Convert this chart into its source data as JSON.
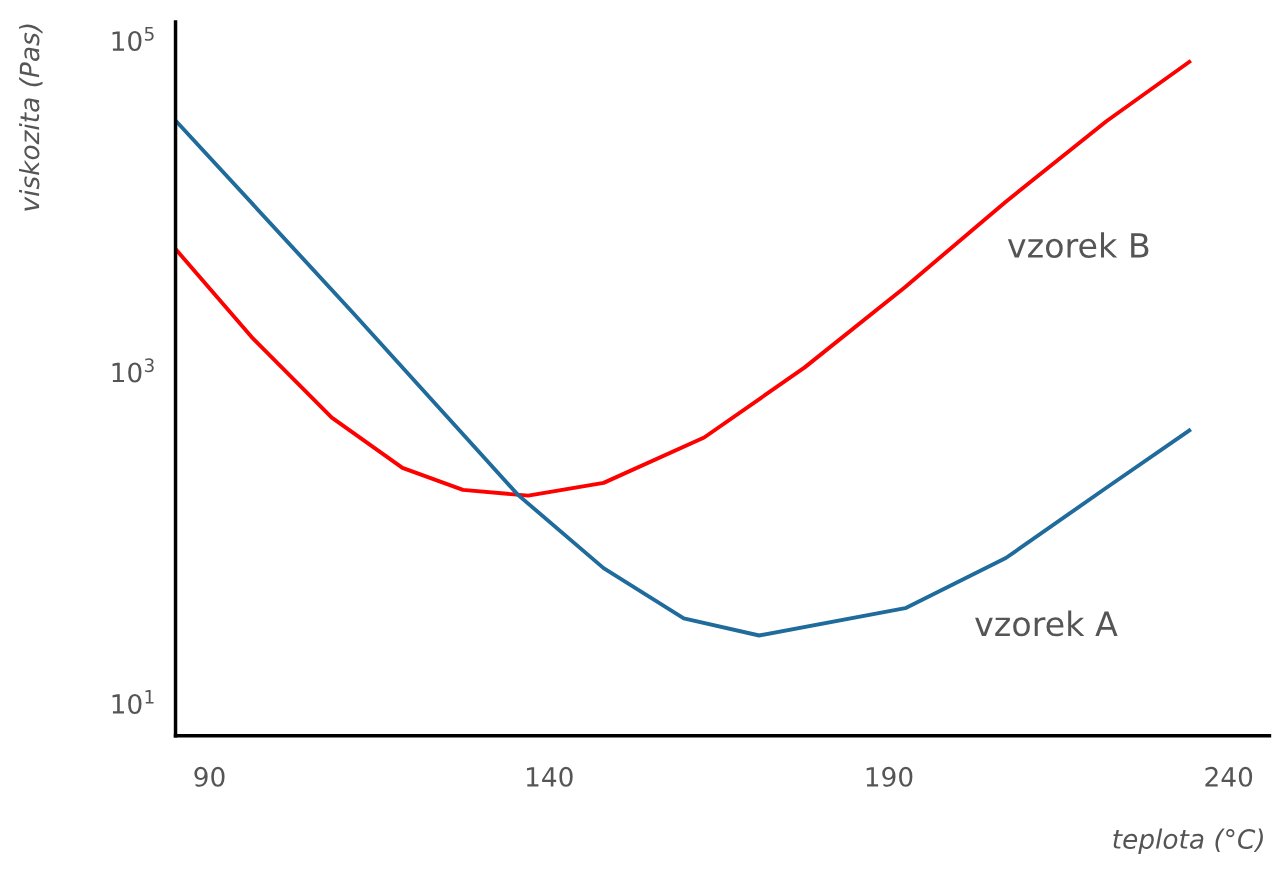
{
  "chart_data": {
    "type": "line",
    "xlabel": "teplota (°C)",
    "ylabel": "viskozita (Pas)",
    "log": "y",
    "xlim": [
      85,
      246
    ],
    "ylim": [
      6.4,
      130000
    ],
    "xticks": [
      90,
      140,
      190,
      240
    ],
    "yticks": [
      {
        "value": 10,
        "label": "10$^{1}$"
      },
      {
        "value": 1000,
        "label": "10$^{3}$"
      },
      {
        "value": 100000,
        "label": "10$^{5}$"
      }
    ],
    "grid": false,
    "legend": false,
    "marker": "none",
    "line_style": "solid",
    "series": [
      {
        "name": "vzorek B",
        "color": "#ff0000",
        "x": [
          85.1,
          96.2,
          108,
          118.4,
          127.3,
          136.9,
          148,
          162.8,
          177.6,
          192.4,
          207.2,
          222,
          234.2
        ],
        "values": [
          5480,
          1630,
          533,
          265,
          195,
          180,
          215,
          404,
          1070,
          3270,
          10700,
          32700,
          74600
        ]
      },
      {
        "name": "vzorek A",
        "color": "#1f6b9c",
        "x": [
          85.1,
          111,
          135.4,
          148,
          159.8,
          170.9,
          192.4,
          207.2,
          222,
          234.2
        ],
        "values": [
          32700,
          2310,
          182,
          65.8,
          32.7,
          25.8,
          37.7,
          75.7,
          201,
          445
        ]
      }
    ]
  }
}
